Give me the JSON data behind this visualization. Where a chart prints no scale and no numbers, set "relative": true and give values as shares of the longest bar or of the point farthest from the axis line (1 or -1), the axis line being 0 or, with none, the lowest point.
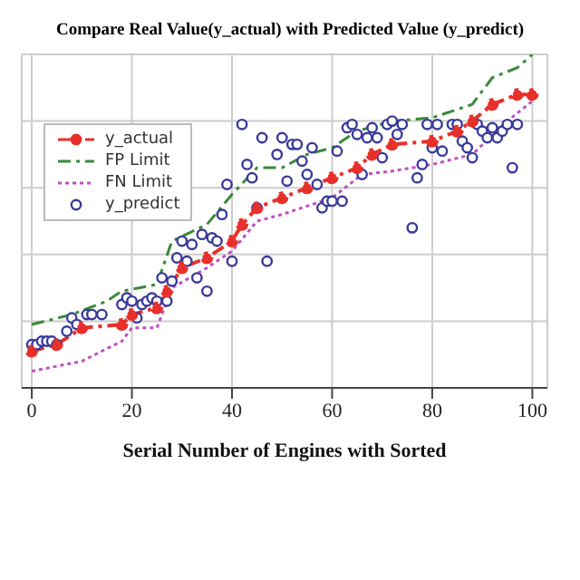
{
  "chart_data": {
    "type": "line",
    "title": "Compare Real Value(y_actual) with Predicted Value (y_predict)",
    "xlabel": "Serial Number of Engines with Sorted",
    "relative": true,
    "xlim": [
      -2,
      103
    ],
    "xticks": [
      0,
      20,
      40,
      60,
      80,
      100
    ],
    "grid": true,
    "legend": "top left",
    "series": [
      {
        "name": "y_actual",
        "color": "#e8302a",
        "marker": "circle",
        "line_style": "dashed",
        "x": [
          0,
          5,
          10,
          18,
          20,
          25,
          27,
          30,
          35,
          40,
          42,
          45,
          50,
          55,
          60,
          65,
          68,
          72,
          80,
          85,
          88,
          92,
          97,
          100
        ],
        "values": [
          0.11,
          0.13,
          0.18,
          0.19,
          0.22,
          0.24,
          0.29,
          0.36,
          0.39,
          0.44,
          0.49,
          0.54,
          0.57,
          0.6,
          0.63,
          0.66,
          0.7,
          0.73,
          0.74,
          0.77,
          0.8,
          0.85,
          0.88,
          0.88
        ]
      },
      {
        "name": "FP Limit",
        "color": "#3a8a3a",
        "marker": "none",
        "line_style": "dashed",
        "x": [
          0,
          8,
          15,
          18,
          25,
          28,
          35,
          40,
          45,
          50,
          55,
          60,
          65,
          72,
          80,
          88,
          92,
          97,
          100
        ],
        "values": [
          0.19,
          0.22,
          0.26,
          0.29,
          0.31,
          0.44,
          0.49,
          0.58,
          0.66,
          0.66,
          0.7,
          0.72,
          0.77,
          0.8,
          0.81,
          0.85,
          0.93,
          0.96,
          1.0
        ]
      },
      {
        "name": "FN Limit",
        "color": "#c050c0",
        "marker": "none",
        "line_style": "dotted",
        "x": [
          0,
          10,
          18,
          20,
          25,
          28,
          35,
          40,
          45,
          50,
          60,
          66,
          72,
          80,
          88,
          95,
          100
        ],
        "values": [
          0.05,
          0.08,
          0.14,
          0.18,
          0.18,
          0.3,
          0.36,
          0.41,
          0.5,
          0.52,
          0.57,
          0.64,
          0.65,
          0.67,
          0.7,
          0.8,
          0.86
        ]
      },
      {
        "name": "y_predict",
        "type": "scatter",
        "color": "#3a3a9a",
        "marker": "circle",
        "x": [
          0,
          1,
          2,
          3,
          4,
          5,
          7,
          8,
          9,
          11,
          12,
          14,
          18,
          19,
          20,
          21,
          22,
          23,
          24,
          25,
          26,
          27,
          28,
          29,
          30,
          31,
          32,
          33,
          34,
          35,
          36,
          37,
          38,
          39,
          40,
          42,
          43,
          44,
          45,
          46,
          47,
          49,
          50,
          51,
          52,
          53,
          54,
          55,
          56,
          57,
          58,
          59,
          60,
          61,
          62,
          63,
          64,
          65,
          66,
          67,
          68,
          69,
          70,
          71,
          72,
          73,
          74,
          76,
          77,
          78,
          79,
          80,
          81,
          82,
          84,
          85,
          86,
          87,
          88,
          89,
          90,
          91,
          92,
          93,
          94,
          95,
          96,
          97
        ],
        "values": [
          0.13,
          0.13,
          0.14,
          0.14,
          0.14,
          0.13,
          0.17,
          0.21,
          0.19,
          0.22,
          0.22,
          0.22,
          0.25,
          0.27,
          0.26,
          0.21,
          0.25,
          0.26,
          0.27,
          0.26,
          0.33,
          0.26,
          0.32,
          0.39,
          0.44,
          0.38,
          0.43,
          0.33,
          0.46,
          0.29,
          0.45,
          0.44,
          0.52,
          0.61,
          0.38,
          0.79,
          0.67,
          0.63,
          0.54,
          0.75,
          0.38,
          0.7,
          0.75,
          0.62,
          0.73,
          0.73,
          0.68,
          0.64,
          0.72,
          0.61,
          0.54,
          0.56,
          0.56,
          0.71,
          0.56,
          0.78,
          0.79,
          0.76,
          0.64,
          0.75,
          0.78,
          0.75,
          0.69,
          0.79,
          0.8,
          0.76,
          0.79,
          0.48,
          0.63,
          0.67,
          0.79,
          0.72,
          0.79,
          0.71,
          0.79,
          0.79,
          0.74,
          0.72,
          0.69,
          0.79,
          0.77,
          0.75,
          0.78,
          0.75,
          0.77,
          0.79,
          0.66,
          0.79
        ]
      }
    ]
  }
}
